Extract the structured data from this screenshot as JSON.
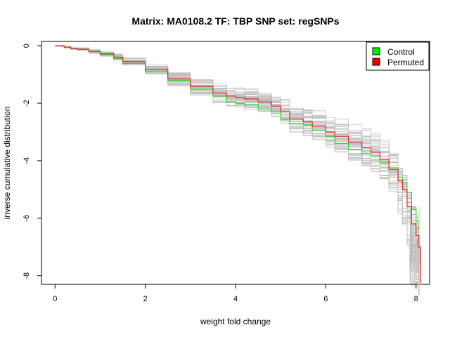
{
  "chart_data": {
    "type": "line",
    "title": "Matrix: MA0108.2 TF: TBP SNP set: regSNPs",
    "xlabel": "weight fold change",
    "ylabel": "inverse cumulative distribution",
    "xlim": [
      -0.3,
      8.3
    ],
    "ylim": [
      -8.3,
      0.15
    ],
    "x_ticks": [
      0,
      2,
      4,
      6,
      8
    ],
    "y_ticks": [
      0,
      -2,
      -4,
      -6,
      -8
    ],
    "grid": false,
    "legend_position": "top-right",
    "legend": [
      {
        "label": "Control",
        "color": "#00ee00"
      },
      {
        "label": "Permuted",
        "color": "#ee0000"
      }
    ],
    "colors": {
      "control": "#22dd22",
      "permuted": "#ee2222",
      "background_series": "#bebebe"
    },
    "background_series_count": 40,
    "series": [
      {
        "name": "Control",
        "x": [
          0.0,
          0.2,
          0.35,
          0.5,
          0.75,
          1.0,
          1.3,
          1.5,
          2.0,
          2.5,
          3.0,
          3.5,
          3.8,
          4.0,
          4.2,
          4.5,
          4.8,
          5.0,
          5.2,
          5.5,
          5.7,
          6.0,
          6.2,
          6.5,
          6.8,
          7.0,
          7.2,
          7.4,
          7.6,
          7.7,
          7.8,
          7.9,
          8.0,
          8.05
        ],
        "y": [
          0.0,
          -0.05,
          -0.1,
          -0.12,
          -0.2,
          -0.3,
          -0.45,
          -0.62,
          -0.9,
          -1.2,
          -1.5,
          -1.75,
          -1.95,
          -2.0,
          -2.05,
          -2.2,
          -2.3,
          -2.55,
          -2.72,
          -2.75,
          -2.95,
          -3.15,
          -3.4,
          -3.6,
          -3.75,
          -3.85,
          -4.05,
          -4.25,
          -4.6,
          -4.75,
          -5.1,
          -5.7,
          -6.1,
          -6.4
        ]
      },
      {
        "name": "Permuted",
        "x": [
          0.0,
          0.2,
          0.35,
          0.5,
          0.75,
          1.0,
          1.3,
          1.5,
          2.0,
          2.5,
          3.0,
          3.5,
          3.8,
          4.0,
          4.2,
          4.5,
          4.8,
          5.0,
          5.2,
          5.5,
          5.7,
          6.0,
          6.2,
          6.5,
          6.8,
          7.0,
          7.2,
          7.4,
          7.6,
          7.7,
          7.8,
          7.9,
          8.0,
          8.05,
          8.1
        ],
        "y": [
          0.0,
          -0.05,
          -0.1,
          -0.12,
          -0.2,
          -0.28,
          -0.4,
          -0.55,
          -0.82,
          -1.15,
          -1.42,
          -1.65,
          -1.75,
          -1.8,
          -1.85,
          -1.95,
          -2.1,
          -2.3,
          -2.55,
          -2.65,
          -2.8,
          -3.0,
          -3.15,
          -3.35,
          -3.55,
          -3.7,
          -3.95,
          -4.3,
          -4.7,
          -5.0,
          -5.6,
          -6.2,
          -6.6,
          -7.0,
          -8.25
        ]
      }
    ]
  }
}
